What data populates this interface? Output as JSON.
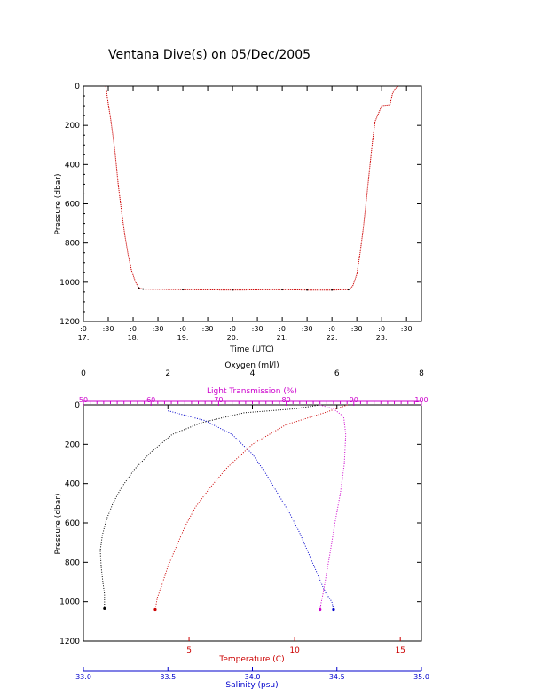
{
  "chart_data": [
    {
      "type": "line",
      "title": "Ventana Dive(s) on 05/Dec/2005",
      "xlabel": "Time (UTC)",
      "ylabel": "Pressure (dbar)",
      "xlim": [
        "17:00",
        "23:48"
      ],
      "ylim": [
        1200,
        0
      ],
      "y_ticks": [
        0,
        200,
        400,
        600,
        800,
        1000,
        1200
      ],
      "x_ticks": [
        {
          "t": "17:00",
          "top": ":0",
          "bottom": "17:"
        },
        {
          "t": "17:30",
          "top": ":30",
          "bottom": ""
        },
        {
          "t": "18:00",
          "top": ":0",
          "bottom": "18:"
        },
        {
          "t": "18:30",
          "top": ":30",
          "bottom": ""
        },
        {
          "t": "19:00",
          "top": ":0",
          "bottom": "19:"
        },
        {
          "t": "19:30",
          "top": ":30",
          "bottom": ""
        },
        {
          "t": "20:00",
          "top": ":0",
          "bottom": "20:"
        },
        {
          "t": "20:30",
          "top": ":30",
          "bottom": ""
        },
        {
          "t": "21:00",
          "top": ":0",
          "bottom": "21:"
        },
        {
          "t": "21:30",
          "top": ":30",
          "bottom": ""
        },
        {
          "t": "22:00",
          "top": ":0",
          "bottom": "22:"
        },
        {
          "t": "22:30",
          "top": ":30",
          "bottom": ""
        },
        {
          "t": "23:00",
          "top": ":0",
          "bottom": "23:"
        },
        {
          "t": "23:30",
          "top": ":30",
          "bottom": ""
        }
      ],
      "series": [
        {
          "color": "#cc0000",
          "points": [
            [
              "17:27",
              0
            ],
            [
              "17:30",
              90
            ],
            [
              "17:33",
              170
            ],
            [
              "17:38",
              330
            ],
            [
              "17:42",
              500
            ],
            [
              "17:46",
              640
            ],
            [
              "17:50",
              760
            ],
            [
              "17:54",
              860
            ],
            [
              "17:58",
              940
            ],
            [
              "18:03",
              1000
            ],
            [
              "18:07",
              1030
            ],
            [
              "18:12",
              1035
            ],
            [
              "19:00",
              1038
            ],
            [
              "20:00",
              1040
            ],
            [
              "21:00",
              1038
            ],
            [
              "21:30",
              1040
            ],
            [
              "22:00",
              1040
            ],
            [
              "22:20",
              1038
            ],
            [
              "22:25",
              1020
            ],
            [
              "22:30",
              960
            ],
            [
              "22:34",
              850
            ],
            [
              "22:38",
              720
            ],
            [
              "22:42",
              560
            ],
            [
              "22:46",
              400
            ],
            [
              "22:49",
              280
            ],
            [
              "22:52",
              180
            ],
            [
              "23:00",
              100
            ],
            [
              "23:10",
              95
            ],
            [
              "23:13",
              40
            ],
            [
              "23:16",
              15
            ],
            [
              "23:20",
              0
            ]
          ]
        }
      ]
    },
    {
      "type": "scatter",
      "ylabel": "Pressure (dbar)",
      "ylim": [
        1200,
        0
      ],
      "y_ticks": [
        0,
        200,
        400,
        600,
        800,
        1000,
        1200
      ],
      "axes": {
        "oxygen": {
          "label": "Oxygen (ml/l)",
          "range": [
            0,
            8
          ],
          "ticks": [
            0,
            2,
            4,
            6,
            8
          ],
          "color": "#000000"
        },
        "light": {
          "label": "Light Transmission (%)",
          "range": [
            50,
            100
          ],
          "ticks": [
            50,
            60,
            70,
            80,
            90,
            100
          ],
          "color": "#cc00cc"
        },
        "temperature": {
          "label": "Temperature (C)",
          "range": [
            0,
            16
          ],
          "ticks": [
            5,
            10,
            15
          ],
          "color": "#cc0000"
        },
        "salinity": {
          "label": "Salinity (psu)",
          "range": [
            33.0,
            35.0
          ],
          "ticks": [
            "33.0",
            "33.5",
            "34.0",
            "34.5",
            "35.0"
          ],
          "color": "#0000cc"
        }
      },
      "series": [
        {
          "axis": "oxygen",
          "color": "#000000",
          "points": [
            [
              5.6,
              0
            ],
            [
              5.0,
              20
            ],
            [
              3.8,
              40
            ],
            [
              2.8,
              90
            ],
            [
              2.1,
              150
            ],
            [
              1.6,
              240
            ],
            [
              1.2,
              330
            ],
            [
              0.9,
              420
            ],
            [
              0.7,
              500
            ],
            [
              0.55,
              580
            ],
            [
              0.45,
              660
            ],
            [
              0.4,
              740
            ],
            [
              0.42,
              820
            ],
            [
              0.46,
              900
            ],
            [
              0.5,
              960
            ],
            [
              0.5,
              1000
            ],
            [
              0.5,
              1035
            ]
          ]
        },
        {
          "axis": "temperature",
          "color": "#cc0000",
          "points": [
            [
              12.5,
              0
            ],
            [
              11.4,
              40
            ],
            [
              9.6,
              100
            ],
            [
              8.0,
              200
            ],
            [
              6.8,
              320
            ],
            [
              6.0,
              420
            ],
            [
              5.3,
              520
            ],
            [
              4.8,
              620
            ],
            [
              4.4,
              720
            ],
            [
              4.0,
              820
            ],
            [
              3.7,
              920
            ],
            [
              3.5,
              980
            ],
            [
              3.4,
              1040
            ]
          ]
        },
        {
          "axis": "salinity",
          "color": "#0000cc",
          "points": [
            [
              33.5,
              30
            ],
            [
              33.72,
              80
            ],
            [
              33.88,
              150
            ],
            [
              34.0,
              250
            ],
            [
              34.08,
              350
            ],
            [
              34.15,
              450
            ],
            [
              34.22,
              550
            ],
            [
              34.28,
              650
            ],
            [
              34.33,
              750
            ],
            [
              34.38,
              850
            ],
            [
              34.43,
              950
            ],
            [
              34.47,
              1000
            ],
            [
              34.48,
              1040
            ]
          ]
        },
        {
          "axis": "light",
          "color": "#cc00cc",
          "points": [
            [
              85,
              0
            ],
            [
              87,
              20
            ],
            [
              88.5,
              60
            ],
            [
              88.8,
              150
            ],
            [
              88.6,
              300
            ],
            [
              88.0,
              450
            ],
            [
              87.2,
              600
            ],
            [
              86.5,
              750
            ],
            [
              86.0,
              850
            ],
            [
              85.5,
              950
            ],
            [
              85.2,
              1000
            ],
            [
              85.0,
              1040
            ]
          ]
        }
      ]
    }
  ]
}
